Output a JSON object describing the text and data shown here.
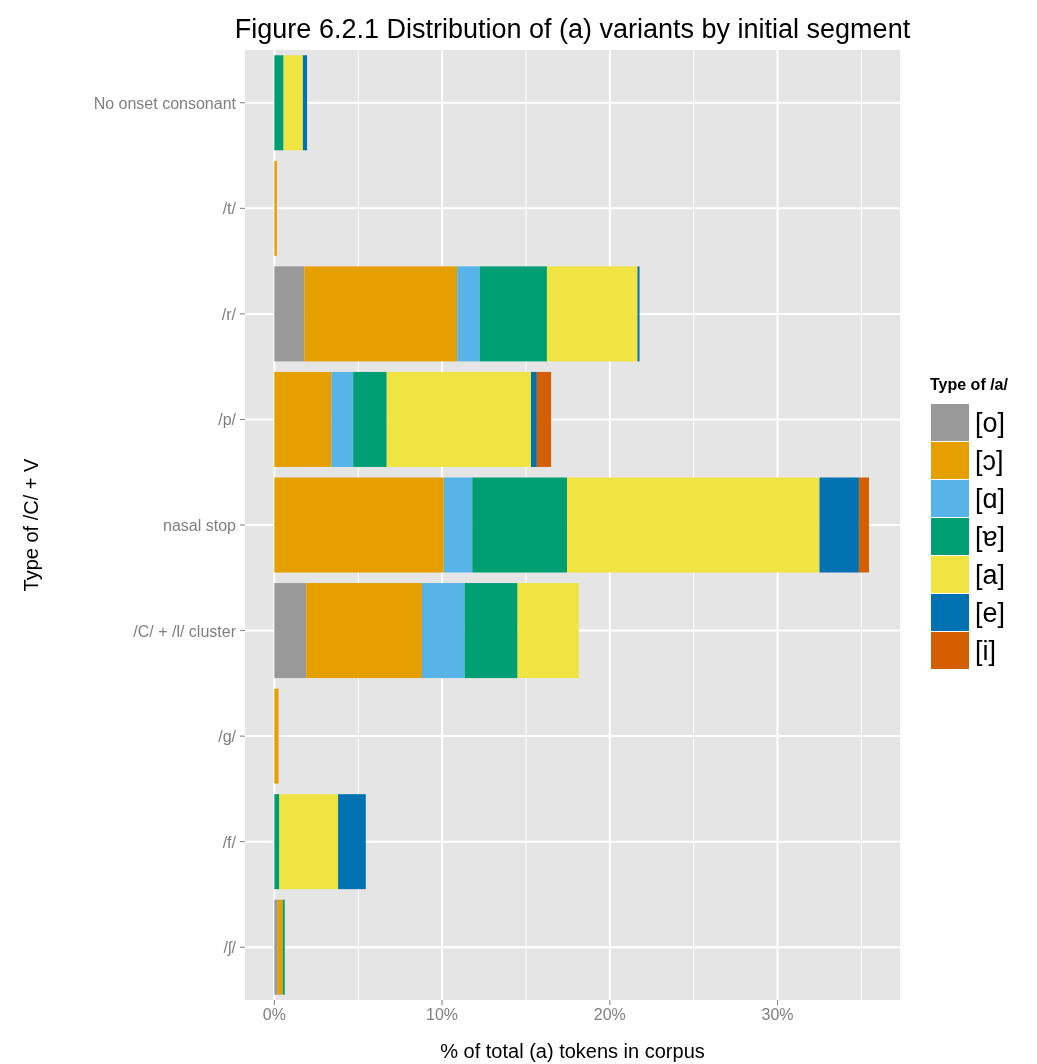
{
  "chart_data": {
    "type": "bar",
    "orientation": "horizontal",
    "stacked": true,
    "title": "Figure 6.2.1 Distribution of (a) variants by initial segment",
    "xlabel": "% of total (a) tokens in corpus",
    "ylabel": "Type of /C/ + V",
    "legend_title": "Type of /a/",
    "legend": "right",
    "grid": true,
    "categories": [
      "No onset consonant",
      "/t/",
      "/r/",
      "/p/",
      "nasal stop",
      "/C/ + /l/ cluster",
      "/g/",
      "/f/",
      "/ʃ/"
    ],
    "xlim": [
      -1.75,
      37.3
    ],
    "xticks": [
      {
        "value": 0,
        "label": "0%"
      },
      {
        "value": 5,
        "label": null
      },
      {
        "value": 10,
        "label": "10%"
      },
      {
        "value": 15,
        "label": null
      },
      {
        "value": 20,
        "label": "20%"
      },
      {
        "value": 25,
        "label": null
      },
      {
        "value": 30,
        "label": "30%"
      },
      {
        "value": 35,
        "label": null
      }
    ],
    "series": [
      {
        "name": "[o]",
        "color": "#999999",
        "values": [
          0,
          0,
          1.8,
          0,
          0,
          1.9,
          0,
          0,
          0.2
        ]
      },
      {
        "name": "[ɔ]",
        "color": "#e69f00",
        "values": [
          0,
          0.15,
          9.1,
          3.4,
          10.1,
          6.9,
          0.25,
          0,
          0.3
        ]
      },
      {
        "name": "[ɑ]",
        "color": "#56b4e9",
        "values": [
          0,
          0,
          1.35,
          1.3,
          1.7,
          2.55,
          0,
          0,
          0
        ]
      },
      {
        "name": "[ɐ]",
        "color": "#009e73",
        "values": [
          0.55,
          0,
          4.0,
          2.0,
          5.65,
          3.15,
          0,
          0.3,
          0.12
        ]
      },
      {
        "name": "[a]",
        "color": "#f0e442",
        "values": [
          1.15,
          0,
          5.4,
          8.6,
          15.05,
          3.65,
          0,
          3.5,
          0
        ]
      },
      {
        "name": "[e]",
        "color": "#0072b2",
        "values": [
          0.25,
          0,
          0.12,
          0.35,
          2.35,
          0,
          0,
          1.65,
          0
        ]
      },
      {
        "name": "[i]",
        "color": "#d55e00",
        "values": [
          0,
          0,
          0,
          0.85,
          0.6,
          0,
          0,
          0,
          0
        ]
      }
    ]
  }
}
